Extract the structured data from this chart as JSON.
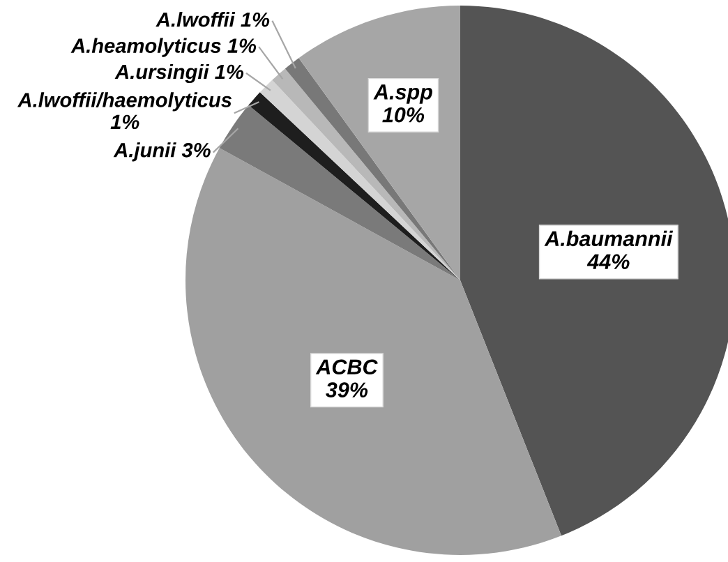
{
  "chart_data": {
    "type": "pie",
    "categories": [
      "A.baumannii",
      "ACBC",
      "A.junii",
      "A.lwoffii/haemolyticus",
      "A.ursingii",
      "A.heamolyticus",
      "A.lwoffii",
      "A.spp"
    ],
    "values": [
      44,
      39,
      3,
      1,
      1,
      1,
      1,
      10
    ],
    "value_labels": [
      "44%",
      "39%",
      "3%",
      "1%",
      "1%",
      "1%",
      "1%",
      "10%"
    ],
    "colors": [
      "#545454",
      "#a0a0a0",
      "#7a7a7a",
      "#1e1e1e",
      "#d4d4d4",
      "#b8b8b8",
      "#787878",
      "#a6a6a6"
    ]
  }
}
